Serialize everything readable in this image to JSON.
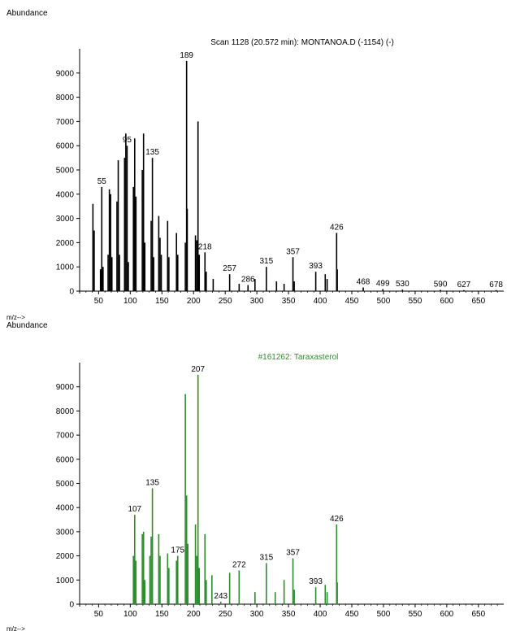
{
  "panels": [
    {
      "abundance_label": "Abundance",
      "xaxis_caption": "m/z-->"
    },
    {
      "abundance_label": "Abundance",
      "xaxis_caption": "m/z-->"
    }
  ],
  "colors": {
    "top_series": "#000000",
    "bottom_series": "#2e8b2e",
    "bottom_title": "#2e8b2e"
  },
  "chart_data": [
    {
      "type": "bar",
      "title": "Scan 1128 (20.572 min): MONTANOA.D (-1154) (-)",
      "xlabel": "m/z-->",
      "ylabel": "Abundance",
      "xlim": [
        20,
        690
      ],
      "ylim": [
        0,
        10000
      ],
      "xticks": [
        50,
        100,
        150,
        200,
        250,
        300,
        350,
        400,
        450,
        500,
        550,
        600,
        650
      ],
      "yticks": [
        0,
        1000,
        2000,
        3000,
        4000,
        5000,
        6000,
        7000,
        8000,
        9000
      ],
      "peaks": [
        [
          41,
          3600
        ],
        [
          43,
          2500
        ],
        [
          53,
          900
        ],
        [
          55,
          4300
        ],
        [
          57,
          1000
        ],
        [
          65,
          1500
        ],
        [
          67,
          4200
        ],
        [
          69,
          4000
        ],
        [
          71,
          1400
        ],
        [
          79,
          3700
        ],
        [
          81,
          5400
        ],
        [
          83,
          1500
        ],
        [
          91,
          5500
        ],
        [
          93,
          6500
        ],
        [
          95,
          6000
        ],
        [
          97,
          1200
        ],
        [
          105,
          4300
        ],
        [
          107,
          6300
        ],
        [
          109,
          3900
        ],
        [
          119,
          5000
        ],
        [
          121,
          6500
        ],
        [
          123,
          2000
        ],
        [
          133,
          2900
        ],
        [
          135,
          5500
        ],
        [
          137,
          1400
        ],
        [
          145,
          3100
        ],
        [
          147,
          2200
        ],
        [
          149,
          1500
        ],
        [
          159,
          2900
        ],
        [
          161,
          1400
        ],
        [
          173,
          2400
        ],
        [
          175,
          1500
        ],
        [
          187,
          2000
        ],
        [
          189,
          9500
        ],
        [
          190,
          3400
        ],
        [
          203,
          2300
        ],
        [
          205,
          2100
        ],
        [
          207,
          7000
        ],
        [
          209,
          1500
        ],
        [
          218,
          1600
        ],
        [
          220,
          800
        ],
        [
          231,
          500
        ],
        [
          257,
          700
        ],
        [
          272,
          300
        ],
        [
          286,
          250
        ],
        [
          297,
          500
        ],
        [
          315,
          1000
        ],
        [
          331,
          400
        ],
        [
          343,
          300
        ],
        [
          357,
          1400
        ],
        [
          359,
          400
        ],
        [
          393,
          800
        ],
        [
          408,
          700
        ],
        [
          411,
          500
        ],
        [
          426,
          2400
        ],
        [
          427,
          900
        ],
        [
          468,
          150
        ],
        [
          499,
          80
        ],
        [
          530,
          60
        ],
        [
          590,
          50
        ],
        [
          627,
          40
        ],
        [
          678,
          40
        ]
      ],
      "peak_labels": [
        {
          "x": 55,
          "label": "55"
        },
        {
          "x": 95,
          "label": "95"
        },
        {
          "x": 135,
          "label": "135"
        },
        {
          "x": 189,
          "label": "189"
        },
        {
          "x": 218,
          "label": "218"
        },
        {
          "x": 257,
          "label": "257"
        },
        {
          "x": 286,
          "label": "286"
        },
        {
          "x": 315,
          "label": "315"
        },
        {
          "x": 357,
          "label": "357"
        },
        {
          "x": 393,
          "label": "393"
        },
        {
          "x": 426,
          "label": "426"
        },
        {
          "x": 468,
          "label": "468"
        },
        {
          "x": 499,
          "label": "499"
        },
        {
          "x": 530,
          "label": "530"
        },
        {
          "x": 590,
          "label": "590"
        },
        {
          "x": 627,
          "label": "627"
        },
        {
          "x": 678,
          "label": "678"
        }
      ]
    },
    {
      "type": "bar",
      "title": "#161262: Taraxasterol",
      "xlabel": "m/z-->",
      "ylabel": "Abundance",
      "xlim": [
        20,
        690
      ],
      "ylim": [
        0,
        10000
      ],
      "xticks": [
        50,
        100,
        150,
        200,
        250,
        300,
        350,
        400,
        450,
        500,
        550,
        600,
        650
      ],
      "yticks": [
        0,
        1000,
        2000,
        3000,
        4000,
        5000,
        6000,
        7000,
        8000,
        9000
      ],
      "peaks": [
        [
          105,
          2000
        ],
        [
          107,
          3700
        ],
        [
          109,
          1800
        ],
        [
          119,
          2900
        ],
        [
          121,
          3000
        ],
        [
          123,
          1000
        ],
        [
          131,
          2000
        ],
        [
          133,
          2800
        ],
        [
          135,
          4800
        ],
        [
          145,
          2900
        ],
        [
          147,
          2000
        ],
        [
          159,
          2100
        ],
        [
          161,
          1500
        ],
        [
          173,
          1800
        ],
        [
          175,
          2000
        ],
        [
          187,
          8700
        ],
        [
          189,
          4500
        ],
        [
          191,
          2500
        ],
        [
          203,
          3300
        ],
        [
          205,
          2000
        ],
        [
          207,
          9500
        ],
        [
          209,
          1500
        ],
        [
          218,
          2900
        ],
        [
          220,
          1000
        ],
        [
          229,
          1200
        ],
        [
          243,
          100
        ],
        [
          257,
          1300
        ],
        [
          272,
          1400
        ],
        [
          297,
          500
        ],
        [
          315,
          1700
        ],
        [
          329,
          500
        ],
        [
          343,
          1000
        ],
        [
          357,
          1900
        ],
        [
          359,
          600
        ],
        [
          393,
          700
        ],
        [
          408,
          800
        ],
        [
          411,
          500
        ],
        [
          426,
          3300
        ],
        [
          427,
          900
        ]
      ],
      "peak_labels": [
        {
          "x": 107,
          "label": "107"
        },
        {
          "x": 135,
          "label": "135"
        },
        {
          "x": 175,
          "label": "175"
        },
        {
          "x": 207,
          "label": "207"
        },
        {
          "x": 243,
          "label": "243"
        },
        {
          "x": 272,
          "label": "272"
        },
        {
          "x": 315,
          "label": "315"
        },
        {
          "x": 357,
          "label": "357"
        },
        {
          "x": 393,
          "label": "393"
        },
        {
          "x": 426,
          "label": "426"
        }
      ]
    }
  ]
}
